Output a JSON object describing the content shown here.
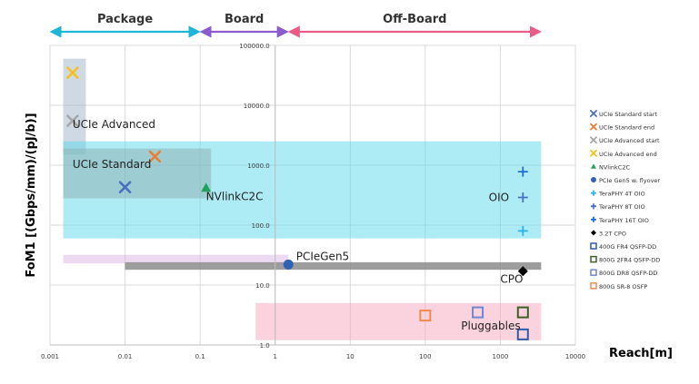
{
  "chart_data": {
    "type": "scatter",
    "title": "",
    "xlabel": "Reach[m]",
    "ylabel": "FoM1 [(Gbps/mm)/(pJ/b)]",
    "xscale": "log",
    "yscale": "log",
    "xlim": [
      0.001,
      10000
    ],
    "ylim": [
      1,
      100000
    ],
    "x_ticks": [
      "0.001",
      "0.01",
      "0.1",
      "1",
      "10",
      "100",
      "1000",
      "10000"
    ],
    "y_ticks": [
      "1.0",
      "10.0",
      "100.0",
      "1000.0",
      "10000.0",
      "100000.0"
    ],
    "grid": true,
    "legend_position": "right",
    "regions": [
      {
        "label": "Package",
        "from": 0.001,
        "to": 0.1,
        "color": "#1fb5d6"
      },
      {
        "label": "Board",
        "from": 0.1,
        "to": 1.5,
        "color": "#8b5ccf"
      },
      {
        "label": "Off-Board",
        "from": 1.5,
        "to": 3500,
        "color": "#e85d86"
      }
    ],
    "bands": [
      {
        "label": "UCIe Advanced",
        "x": [
          0.0015,
          0.003
        ],
        "y": [
          1500,
          60000
        ],
        "color": "#9fb3c8"
      },
      {
        "label": "OIO",
        "x": [
          0.0015,
          3500
        ],
        "y": [
          60,
          2500
        ],
        "color": "#5bd8ec"
      },
      {
        "label": "UCIe Standard",
        "x": [
          0.0015,
          0.14
        ],
        "y": [
          280,
          1900
        ],
        "color": "#8fb5b5"
      },
      {
        "label": "PCIeGen5",
        "x": [
          0.0015,
          1.5
        ],
        "y": [
          23,
          32
        ],
        "color": "#d9b5e5"
      },
      {
        "label": "CPO",
        "x": [
          0.01,
          3500
        ],
        "y": [
          18,
          24
        ],
        "color": "#8c8c8c"
      },
      {
        "label": "Pluggables",
        "x": [
          0.55,
          3500
        ],
        "y": [
          1.2,
          5
        ],
        "color": "#f6a8c0"
      }
    ],
    "series": [
      {
        "name": "UCIe Standard start",
        "marker": "x",
        "color": "#4a6fc1",
        "x": [
          0.01
        ],
        "y": [
          430
        ]
      },
      {
        "name": "UCIe Standard end",
        "marker": "x",
        "color": "#ee7c30",
        "x": [
          0.025
        ],
        "y": [
          1400
        ]
      },
      {
        "name": "UCIe Advanced start",
        "marker": "x",
        "color": "#a6a6a6",
        "x": [
          0.002
        ],
        "y": [
          5500
        ]
      },
      {
        "name": "UCIe Advanced end",
        "marker": "x",
        "color": "#f5c118",
        "x": [
          0.002
        ],
        "y": [
          35000
        ]
      },
      {
        "name": "NVlinkC2C",
        "marker": "triangle",
        "color": "#1fa35c",
        "x": [
          0.12
        ],
        "y": [
          420
        ]
      },
      {
        "name": "PCIe Gen5 w. flyover",
        "marker": "circle",
        "color": "#2f62b5",
        "x": [
          1.5
        ],
        "y": [
          22
        ]
      },
      {
        "name": "TeraPHY 4T OIO",
        "marker": "plus",
        "color": "#2bb2ee",
        "x": [
          2000
        ],
        "y": [
          80
        ]
      },
      {
        "name": "TeraPHY 8T OIO",
        "marker": "plus",
        "color": "#4a72c4",
        "x": [
          2000
        ],
        "y": [
          290
        ]
      },
      {
        "name": "TeraPHY 16T OIO",
        "marker": "plus",
        "color": "#1f6fcf",
        "x": [
          2000
        ],
        "y": [
          780
        ]
      },
      {
        "name": "3.2T CPO",
        "marker": "diamond",
        "color": "#000000",
        "x": [
          2000
        ],
        "y": [
          17
        ]
      },
      {
        "name": "400G FR4 QSFP-DD",
        "marker": "square",
        "color": "#2e5ca6",
        "x": [
          2000
        ],
        "y": [
          1.5
        ]
      },
      {
        "name": "800G 2FR4 QSFP-DD",
        "marker": "square",
        "color": "#3e5e28",
        "x": [
          2000
        ],
        "y": [
          3.5
        ]
      },
      {
        "name": "800G DR8 QSFP-DD",
        "marker": "square",
        "color": "#7087cf",
        "x": [
          500
        ],
        "y": [
          3.5
        ]
      },
      {
        "name": "800G SR-8 OSFP",
        "marker": "square",
        "color": "#ef8c4d",
        "x": [
          100
        ],
        "y": [
          3.1
        ]
      }
    ],
    "annotations": [
      {
        "text": "UCIe Advanced",
        "x": 0.002,
        "y": 4200
      },
      {
        "text": "UCIe Standard",
        "x": 0.002,
        "y": 900
      },
      {
        "text": "NVlinkC2C",
        "x": 0.12,
        "y": 260
      },
      {
        "text": "PCIeGen5",
        "x": 1.9,
        "y": 26
      },
      {
        "text": "OIO",
        "x": 700,
        "y": 250
      },
      {
        "text": "CPO",
        "x": 1000,
        "y": 11
      },
      {
        "text": "Pluggables",
        "x": 300,
        "y": 1.8
      }
    ]
  }
}
